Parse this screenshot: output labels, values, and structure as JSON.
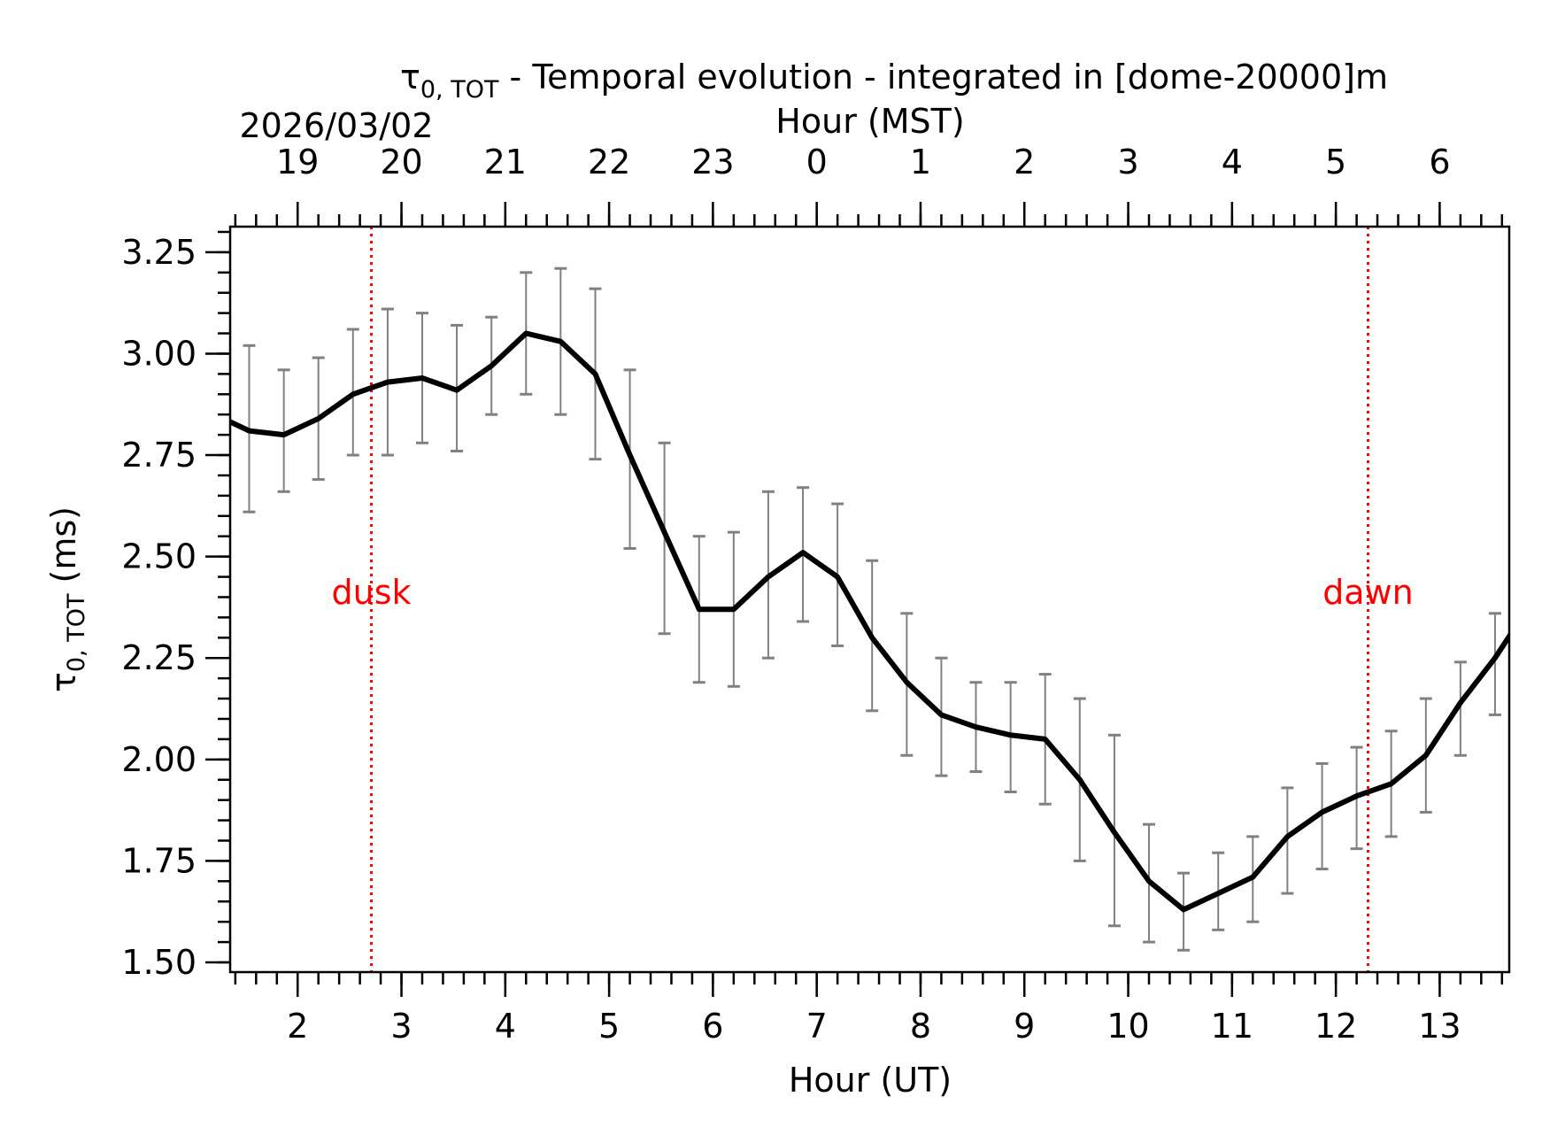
{
  "chart_data": {
    "type": "line",
    "title": {
      "symbol": "τ",
      "subscript": "0, TOT",
      "text": " - Temporal evolution - integrated in [dome-20000]m"
    },
    "date_label": "2026/03/02",
    "xlabel": "Hour (UT)",
    "xlabel_top": "Hour (MST)",
    "ylabel": {
      "symbol": "τ",
      "subscript": "0, TOT",
      "text": " (ms)"
    },
    "xlim": [
      1.35,
      13.67
    ],
    "ylim": [
      1.476,
      3.313
    ],
    "x_ticks": [
      2,
      3,
      4,
      5,
      6,
      7,
      8,
      9,
      10,
      11,
      12,
      13
    ],
    "x_tick_labels": [
      "2",
      "3",
      "4",
      "5",
      "6",
      "7",
      "8",
      "9",
      "10",
      "11",
      "12",
      "13"
    ],
    "x_top_tick_labels": [
      "19",
      "20",
      "21",
      "22",
      "23",
      "0",
      "1",
      "2",
      "3",
      "4",
      "5",
      "6"
    ],
    "x_minor_step": 0.2,
    "y_ticks": [
      1.5,
      1.75,
      2.0,
      2.25,
      2.5,
      2.75,
      3.0,
      3.25
    ],
    "y_tick_labels": [
      "1.50",
      "1.75",
      "2.00",
      "2.25",
      "2.50",
      "2.75",
      "3.00",
      "3.25"
    ],
    "y_minor_step": 0.05,
    "grid": false,
    "line_color": "#000000",
    "errorbar_color": "#808080",
    "annotation_color": "#ff0000",
    "vlines": [
      {
        "label": "dusk",
        "x": 2.71
      },
      {
        "label": "dawn",
        "x": 12.31
      }
    ],
    "series": [
      {
        "x": [
          1.2,
          1.533,
          1.867,
          2.2,
          2.533,
          2.867,
          3.2,
          3.533,
          3.867,
          4.2,
          4.533,
          4.867,
          5.2,
          5.533,
          5.867,
          6.2,
          6.533,
          6.867,
          7.2,
          7.533,
          7.867,
          8.2,
          8.533,
          8.867,
          9.2,
          9.533,
          9.867,
          10.2,
          10.533,
          10.867,
          11.2,
          11.533,
          11.867,
          12.2,
          12.533,
          12.867,
          13.2,
          13.533,
          13.867
        ],
        "y": [
          2.85,
          2.81,
          2.8,
          2.84,
          2.9,
          2.93,
          2.94,
          2.91,
          2.97,
          3.05,
          3.03,
          2.95,
          2.75,
          2.56,
          2.37,
          2.37,
          2.45,
          2.51,
          2.45,
          2.3,
          2.19,
          2.11,
          2.08,
          2.06,
          2.05,
          1.95,
          1.82,
          1.7,
          1.63,
          1.67,
          1.71,
          1.81,
          1.87,
          1.91,
          1.94,
          2.01,
          2.14,
          2.25,
          2.38
        ],
        "err_low": [
          null,
          2.61,
          2.66,
          2.69,
          2.75,
          2.75,
          2.78,
          2.76,
          2.85,
          2.9,
          2.85,
          2.74,
          2.52,
          2.31,
          2.19,
          2.18,
          2.25,
          2.34,
          2.28,
          2.12,
          2.01,
          1.96,
          1.97,
          1.92,
          1.89,
          1.75,
          1.59,
          1.55,
          1.53,
          1.58,
          1.6,
          1.67,
          1.73,
          1.78,
          1.81,
          1.87,
          2.01,
          2.11,
          null
        ],
        "err_high": [
          null,
          3.02,
          2.96,
          2.99,
          3.06,
          3.11,
          3.1,
          3.07,
          3.09,
          3.2,
          3.21,
          3.16,
          2.96,
          2.78,
          2.55,
          2.56,
          2.66,
          2.67,
          2.63,
          2.49,
          2.36,
          2.25,
          2.19,
          2.19,
          2.21,
          2.15,
          2.06,
          1.84,
          1.72,
          1.77,
          1.81,
          1.93,
          1.99,
          2.03,
          2.07,
          2.15,
          2.24,
          2.36,
          null
        ]
      }
    ]
  }
}
